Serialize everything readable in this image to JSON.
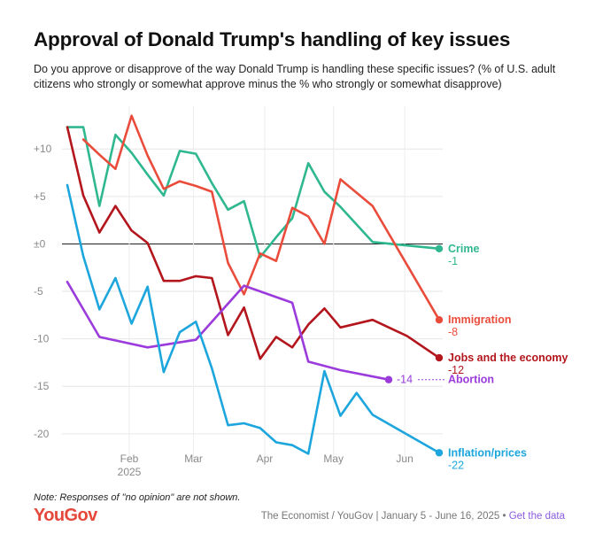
{
  "header": {
    "title": "Approval of Donald Trump's handling of key issues",
    "subtitle": "Do you approve or disapprove of the way Donald Trump is handling these specific issues? (% of U.S. adult citizens who strongly or somewhat approve minus the % who strongly or somewhat disapprove)"
  },
  "footer": {
    "note": "Note: Responses of \"no opinion\" are not shown.",
    "brand": "YouGov",
    "source": "The Economist / YouGov | January 5 - June 16, 2025",
    "separator": " • ",
    "link_label": "Get the data"
  },
  "chart_data": {
    "type": "line",
    "title": "Approval of Donald Trump's handling of key issues",
    "xlabel": "",
    "ylabel": "",
    "x_domain": [
      "2025-01-05",
      "2025-06-16"
    ],
    "ylim": [
      -23,
      14.5
    ],
    "y_ticks": [
      10,
      5,
      0,
      -5,
      -10,
      -15,
      -20
    ],
    "y_tick_labels": [
      "+10",
      "+5",
      "±0",
      "-5",
      "-10",
      "-15",
      "-20"
    ],
    "x_ticks": [
      {
        "date": "2025-02-01",
        "label": "Feb",
        "sublabel": "2025"
      },
      {
        "date": "2025-03-01",
        "label": "Mar",
        "sublabel": ""
      },
      {
        "date": "2025-04-01",
        "label": "Apr",
        "sublabel": ""
      },
      {
        "date": "2025-05-01",
        "label": "May",
        "sublabel": ""
      },
      {
        "date": "2025-06-01",
        "label": "Jun",
        "sublabel": ""
      }
    ],
    "zero_line": true,
    "grid": true,
    "series": [
      {
        "name": "Crime",
        "end_value": "-1",
        "color": "#2fb890",
        "points": [
          [
            "2025-01-05",
            12.3
          ],
          [
            "2025-01-12",
            12.3
          ],
          [
            "2025-01-19",
            4.0
          ],
          [
            "2025-01-26",
            11.5
          ],
          [
            "2025-02-02",
            9.6
          ],
          [
            "2025-02-09",
            7.3
          ],
          [
            "2025-02-16",
            5.1
          ],
          [
            "2025-02-23",
            9.8
          ],
          [
            "2025-03-02",
            9.5
          ],
          [
            "2025-03-09",
            6.4
          ],
          [
            "2025-03-16",
            3.6
          ],
          [
            "2025-03-23",
            4.5
          ],
          [
            "2025-03-30",
            -1.4
          ],
          [
            "2025-04-06",
            0.7
          ],
          [
            "2025-04-13",
            2.7
          ],
          [
            "2025-04-20",
            8.5
          ],
          [
            "2025-04-27",
            5.5
          ],
          [
            "2025-05-04",
            3.9
          ],
          [
            "2025-05-18",
            0.2
          ],
          [
            "2025-06-16",
            -0.5
          ]
        ]
      },
      {
        "name": "Immigration",
        "end_value": "-8",
        "color": "#ea4c3c",
        "points": [
          [
            "2025-01-12",
            11.0
          ],
          [
            "2025-01-19",
            9.4
          ],
          [
            "2025-01-26",
            7.9
          ],
          [
            "2025-02-02",
            13.5
          ],
          [
            "2025-02-09",
            9.3
          ],
          [
            "2025-02-16",
            5.8
          ],
          [
            "2025-02-23",
            6.6
          ],
          [
            "2025-03-02",
            6.1
          ],
          [
            "2025-03-09",
            5.5
          ],
          [
            "2025-03-16",
            -2.0
          ],
          [
            "2025-03-23",
            -5.3
          ],
          [
            "2025-03-30",
            -1.0
          ],
          [
            "2025-04-06",
            -1.8
          ],
          [
            "2025-04-13",
            3.8
          ],
          [
            "2025-04-20",
            2.9
          ],
          [
            "2025-04-27",
            0.0
          ],
          [
            "2025-05-04",
            6.8
          ],
          [
            "2025-05-18",
            4.0
          ],
          [
            "2025-06-16",
            -8.0
          ]
        ]
      },
      {
        "name": "Jobs and the economy",
        "end_value": "-12",
        "color": "#b3161c",
        "points": [
          [
            "2025-01-05",
            12.3
          ],
          [
            "2025-01-12",
            5.1
          ],
          [
            "2025-01-19",
            1.2
          ],
          [
            "2025-01-26",
            4.0
          ],
          [
            "2025-02-02",
            1.4
          ],
          [
            "2025-02-09",
            0.1
          ],
          [
            "2025-02-16",
            -3.9
          ],
          [
            "2025-02-23",
            -3.9
          ],
          [
            "2025-03-02",
            -3.4
          ],
          [
            "2025-03-09",
            -3.6
          ],
          [
            "2025-03-16",
            -9.6
          ],
          [
            "2025-03-23",
            -6.7
          ],
          [
            "2025-03-30",
            -12.1
          ],
          [
            "2025-04-06",
            -9.8
          ],
          [
            "2025-04-13",
            -10.9
          ],
          [
            "2025-04-20",
            -8.5
          ],
          [
            "2025-04-27",
            -6.8
          ],
          [
            "2025-05-04",
            -8.8
          ],
          [
            "2025-05-18",
            -8.0
          ],
          [
            "2025-06-02",
            -9.7
          ],
          [
            "2025-06-16",
            -12.0
          ]
        ]
      },
      {
        "name": "Abortion",
        "end_value": "-14",
        "color": "#9b3bdc",
        "points": [
          [
            "2025-01-05",
            -4.0
          ],
          [
            "2025-01-19",
            -9.8
          ],
          [
            "2025-02-09",
            -10.9
          ],
          [
            "2025-03-02",
            -10.1
          ],
          [
            "2025-03-23",
            -4.4
          ],
          [
            "2025-04-13",
            -6.2
          ],
          [
            "2025-04-20",
            -12.4
          ],
          [
            "2025-05-04",
            -13.3
          ],
          [
            "2025-05-25",
            -14.3
          ]
        ]
      },
      {
        "name": "Inflation/prices",
        "end_value": "-22",
        "color": "#1ca6dd",
        "points": [
          [
            "2025-01-05",
            6.2
          ],
          [
            "2025-01-12",
            -1.3
          ],
          [
            "2025-01-19",
            -6.9
          ],
          [
            "2025-01-26",
            -3.6
          ],
          [
            "2025-02-02",
            -8.4
          ],
          [
            "2025-02-09",
            -4.5
          ],
          [
            "2025-02-16",
            -13.5
          ],
          [
            "2025-02-23",
            -9.3
          ],
          [
            "2025-03-02",
            -8.2
          ],
          [
            "2025-03-09",
            -13.1
          ],
          [
            "2025-03-16",
            -19.1
          ],
          [
            "2025-03-23",
            -18.9
          ],
          [
            "2025-03-30",
            -19.4
          ],
          [
            "2025-04-06",
            -20.9
          ],
          [
            "2025-04-13",
            -21.2
          ],
          [
            "2025-04-20",
            -22.1
          ],
          [
            "2025-04-27",
            -13.4
          ],
          [
            "2025-05-04",
            -18.1
          ],
          [
            "2025-05-11",
            -15.7
          ],
          [
            "2025-05-18",
            -18.0
          ],
          [
            "2025-06-16",
            -22.0
          ]
        ]
      }
    ]
  }
}
